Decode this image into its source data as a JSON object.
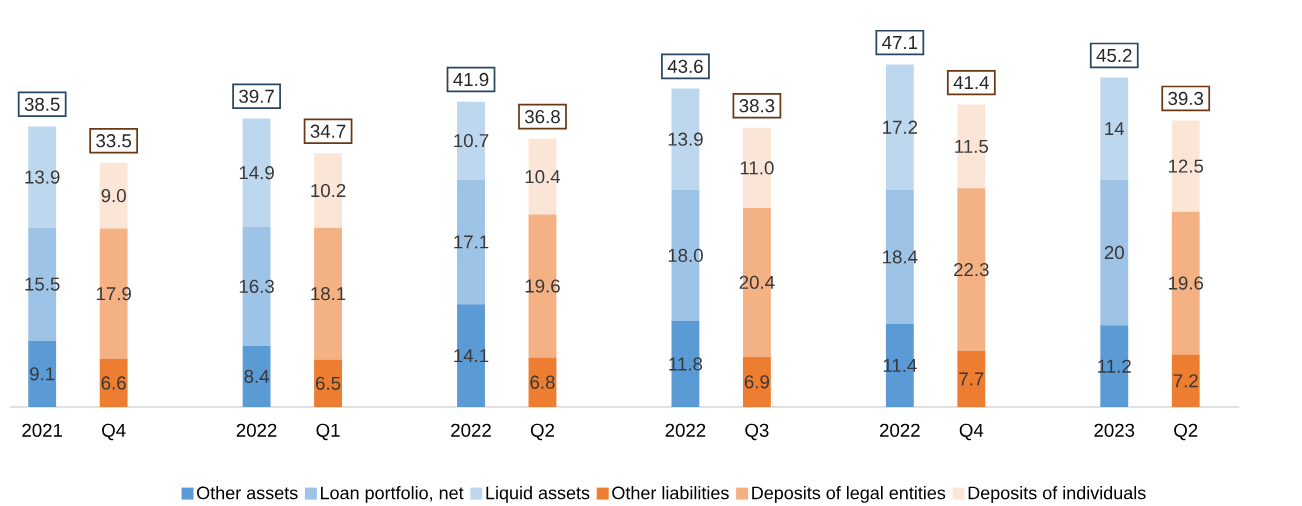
{
  "chart_data": {
    "type": "bar",
    "stacked": true,
    "legend": "bottom",
    "tick_labels": "x",
    "categories": [
      "2021",
      "Q4",
      "2022",
      "Q1",
      "2022",
      "Q2",
      "2022",
      "Q3",
      "2022",
      "Q4",
      "2023",
      "Q2"
    ],
    "series": [
      {
        "name": "Other assets",
        "color": "#5b9bd5",
        "values": [
          9.1,
          null,
          8.4,
          null,
          14.1,
          null,
          11.8,
          null,
          11.4,
          null,
          11.2,
          null
        ],
        "value_labels": [
          "9.1",
          null,
          "8.4",
          null,
          "14.1",
          null,
          "11.8",
          null,
          "11.4",
          null,
          "11.2",
          null
        ]
      },
      {
        "name": "Loan portfolio, net",
        "color": "#9dc3e6",
        "values": [
          15.5,
          null,
          16.3,
          null,
          17.1,
          null,
          18.0,
          null,
          18.4,
          null,
          20,
          null
        ],
        "value_labels": [
          "15.5",
          null,
          "16.3",
          null,
          "17.1",
          null,
          "18.0",
          null,
          "18.4",
          null,
          "20",
          null
        ]
      },
      {
        "name": "Liquid assets",
        "color": "#bdd7ee",
        "values": [
          13.9,
          null,
          14.9,
          null,
          10.7,
          null,
          13.9,
          null,
          17.2,
          null,
          14,
          null
        ],
        "value_labels": [
          "13.9",
          null,
          "14.9",
          null,
          "10.7",
          null,
          "13.9",
          null,
          "17.2",
          null,
          "14",
          null
        ]
      },
      {
        "name": "Other liabilities",
        "color": "#ed7d31",
        "values": [
          null,
          6.6,
          null,
          6.5,
          null,
          6.8,
          null,
          6.9,
          null,
          7.7,
          null,
          7.2
        ],
        "value_labels": [
          null,
          "6.6",
          null,
          "6.5",
          null,
          "6.8",
          null,
          "6.9",
          null,
          "7.7",
          null,
          "7.2"
        ]
      },
      {
        "name": "Deposits of legal entities",
        "color": "#f4b183",
        "values": [
          null,
          17.9,
          null,
          18.1,
          null,
          19.6,
          null,
          20.4,
          null,
          22.3,
          null,
          19.6
        ],
        "value_labels": [
          null,
          "17.9",
          null,
          "18.1",
          null,
          "19.6",
          null,
          "20.4",
          null,
          "22.3",
          null,
          "19.6"
        ]
      },
      {
        "name": "Deposits of individuals",
        "color": "#fbe5d6",
        "values": [
          null,
          9.0,
          null,
          10.2,
          null,
          10.4,
          null,
          11.0,
          null,
          11.5,
          null,
          12.5
        ],
        "value_labels": [
          null,
          "9.0",
          null,
          "10.2",
          null,
          "10.4",
          null,
          "11.0",
          null,
          "11.5",
          null,
          "12.5"
        ]
      }
    ],
    "totals": [
      "38.5",
      "33.5",
      "39.7",
      "34.7",
      "41.9",
      "36.8",
      "43.6",
      "38.3",
      "47.1",
      "41.4",
      "45.2",
      "39.3"
    ]
  }
}
